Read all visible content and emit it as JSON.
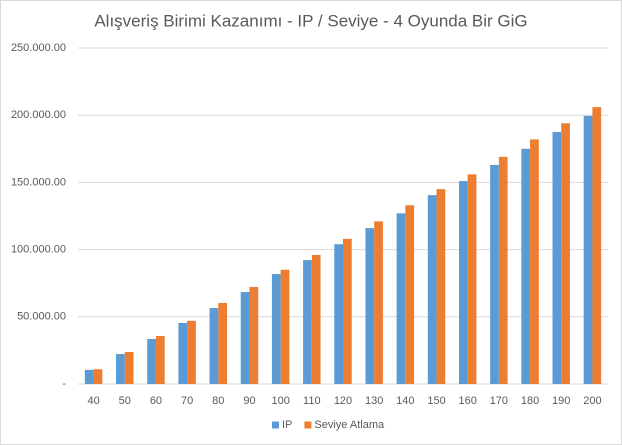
{
  "chart_data": {
    "type": "bar",
    "title": "Alışveriş Birimi Kazanımı - IP / Seviye - 4 Oyunda Bir GiG",
    "categories": [
      "40",
      "50",
      "60",
      "70",
      "80",
      "90",
      "100",
      "110",
      "120",
      "130",
      "140",
      "150",
      "160",
      "170",
      "180",
      "190",
      "200"
    ],
    "series": [
      {
        "name": "IP",
        "color": "#5b9bd5",
        "values": [
          10500,
          22300,
          33500,
          45400,
          56500,
          68400,
          81800,
          92200,
          104000,
          116000,
          127000,
          140500,
          151000,
          163000,
          175000,
          187500,
          199500
        ]
      },
      {
        "name": "Seviye Atlama",
        "color": "#ed7d31",
        "values": [
          11000,
          23800,
          35700,
          47000,
          60300,
          72200,
          85000,
          96000,
          108000,
          121000,
          133000,
          145000,
          156000,
          169000,
          182000,
          194000,
          206000
        ]
      }
    ],
    "ylim": [
      0,
      250000
    ],
    "yticks": [
      {
        "value": 0,
        "label": "-"
      },
      {
        "value": 50000,
        "label": "50.000.00"
      },
      {
        "value": 100000,
        "label": "100.000.00"
      },
      {
        "value": 150000,
        "label": "150.000.00"
      },
      {
        "value": 200000,
        "label": "200.000.00"
      },
      {
        "value": 250000,
        "label": "250.000.00"
      }
    ],
    "grid": true,
    "legend": "bottom"
  }
}
